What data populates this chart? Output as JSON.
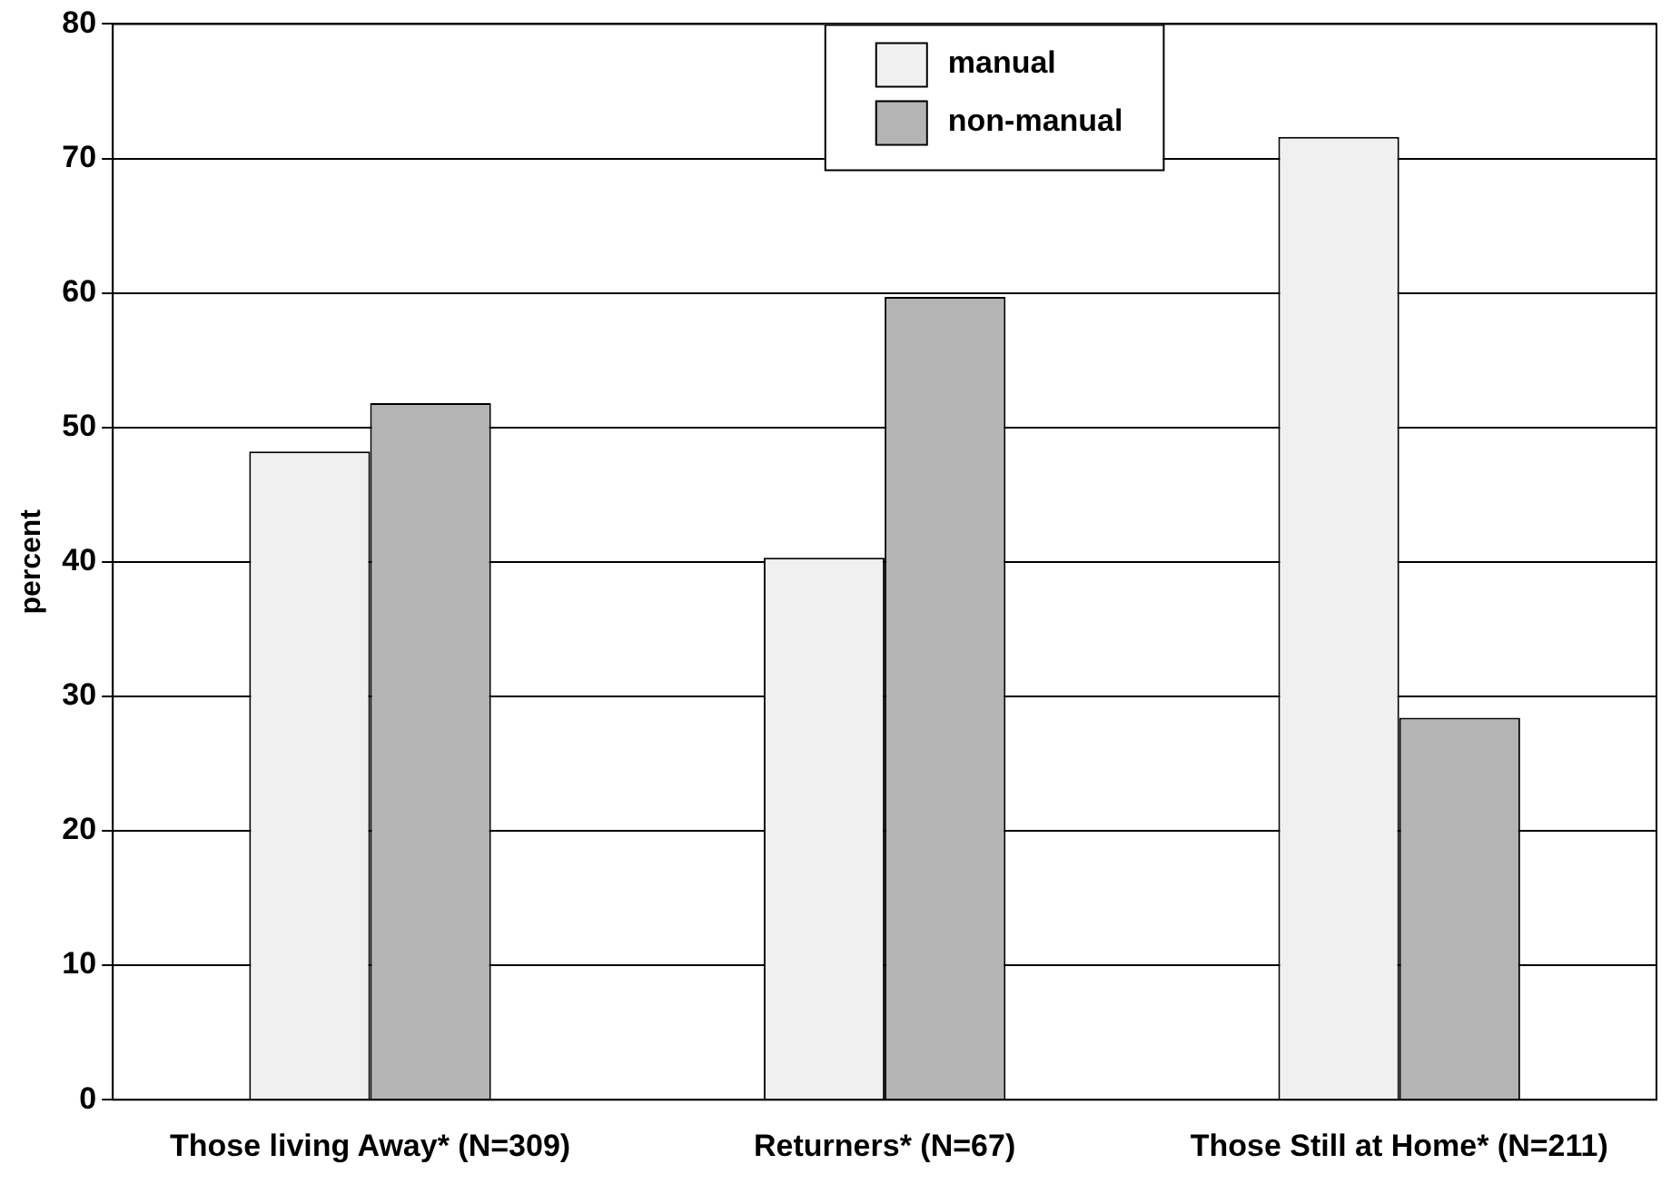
{
  "chart_data": {
    "type": "bar",
    "ylabel": "percent",
    "categories": [
      "Those living Away* (N=309)",
      "Returners* (N=67)",
      "Those Still at Home* (N=211)"
    ],
    "series": [
      {
        "name": "manual",
        "color": "#f0f0f0",
        "values": [
          48.2,
          40.3,
          71.6
        ]
      },
      {
        "name": "non-manual",
        "color": "#b4b4b4",
        "values": [
          51.8,
          59.7,
          28.4
        ]
      }
    ],
    "ylim": [
      0,
      80
    ],
    "yticks": [
      0,
      10,
      20,
      30,
      40,
      50,
      60,
      70,
      80
    ],
    "grid": "y",
    "legend": "top"
  }
}
